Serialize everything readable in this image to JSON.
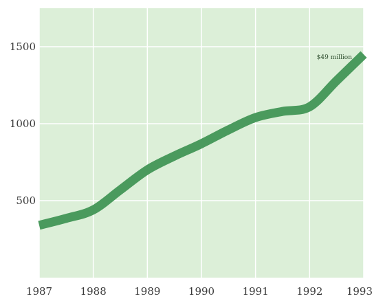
{
  "chart_data": {
    "type": "line",
    "title": "",
    "xlabel": "",
    "ylabel": "",
    "x": [
      1987,
      1987.5,
      1988,
      1988.5,
      1989,
      1989.5,
      1990,
      1990.5,
      1991,
      1991.5,
      1992,
      1992.5,
      1993
    ],
    "series": [
      {
        "values": [
          340,
          385,
          440,
          570,
          700,
          790,
          870,
          960,
          1040,
          1080,
          1110,
          1280,
          1450
        ]
      }
    ],
    "xlim": [
      1987,
      1993
    ],
    "ylim": [
      0,
      1750
    ],
    "x_ticks": [
      "1987",
      "1988",
      "1989",
      "1990",
      "1991",
      "1992",
      "1993"
    ],
    "y_ticks": [
      "500",
      "1000",
      "1500"
    ],
    "grid": true,
    "annotation": "$49 million",
    "colors": {
      "plot_background": "#dcefd8",
      "gridline": "#ffffff",
      "line": "#4a9a5d"
    }
  }
}
